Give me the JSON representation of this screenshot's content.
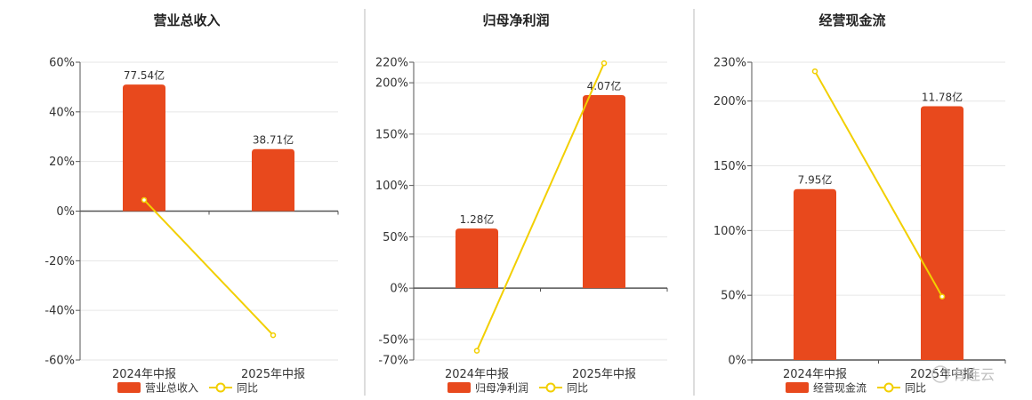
{
  "colors": {
    "bar": "#e8491d",
    "line": "#f2cf00",
    "grid": "#e6e6e6",
    "axis": "#555555",
    "divider": "#bbbbbb"
  },
  "watermark": "有连云",
  "chart_data": [
    {
      "type": "bar",
      "title": "营业总收入",
      "categories": [
        "2024年中报",
        "2025年中报"
      ],
      "yticks": [
        "60%",
        "40%",
        "20%",
        "0%",
        "-20%",
        "-40%",
        "-60%"
      ],
      "ylim": [
        -60,
        60
      ],
      "zero": 0,
      "series": [
        {
          "name": "营业总收入",
          "kind": "bar",
          "values": [
            51,
            25
          ],
          "labels": [
            "77.54亿",
            "38.71亿"
          ]
        },
        {
          "name": "同比",
          "kind": "line",
          "values": [
            4.5,
            -50
          ]
        }
      ]
    },
    {
      "type": "bar",
      "title": "归母净利润",
      "categories": [
        "2024年中报",
        "2025年中报"
      ],
      "yticks": [
        "220%",
        "200%",
        "150%",
        "100%",
        "50%",
        "0%",
        "-50%",
        "-70%"
      ],
      "ylim": [
        -70,
        220
      ],
      "zero": 0,
      "series": [
        {
          "name": "归母净利润",
          "kind": "bar",
          "values": [
            58,
            188
          ],
          "labels": [
            "1.28亿",
            "4.07亿"
          ]
        },
        {
          "name": "同比",
          "kind": "line",
          "values": [
            -61,
            219
          ]
        }
      ]
    },
    {
      "type": "bar",
      "title": "经营现金流",
      "categories": [
        "2024年中报",
        "2025年中报"
      ],
      "yticks": [
        "230%",
        "200%",
        "150%",
        "100%",
        "50%",
        "0%"
      ],
      "ylim": [
        0,
        230
      ],
      "zero": 0,
      "series": [
        {
          "name": "经营现金流",
          "kind": "bar",
          "values": [
            132,
            196
          ],
          "labels": [
            "7.95亿",
            "11.78亿"
          ]
        },
        {
          "name": "同比",
          "kind": "line",
          "values": [
            223,
            49
          ]
        }
      ]
    }
  ]
}
